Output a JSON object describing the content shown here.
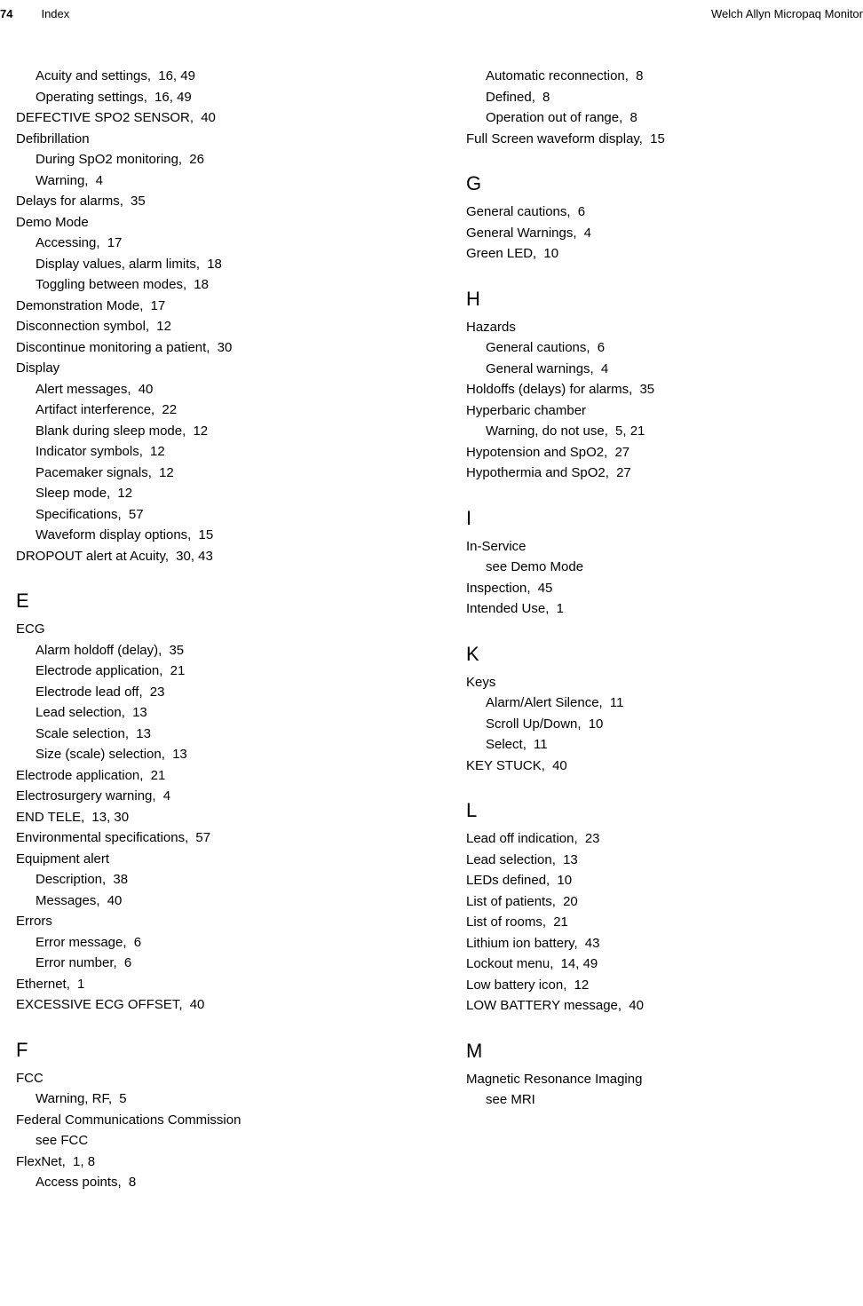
{
  "header": {
    "page_number": "74",
    "section": "Index",
    "product": "Welch Allyn Micropaq Monitor"
  },
  "left": {
    "continuation": [
      {
        "text": "Acuity and settings,",
        "ref": "16, 49",
        "indent": 1
      },
      {
        "text": "Operating settings,",
        "ref": "16, 49",
        "indent": 1
      },
      {
        "text": "DEFECTIVE SPO2 SENSOR,",
        "ref": "40",
        "indent": 0
      },
      {
        "text": "Defibrillation",
        "ref": "",
        "indent": 0
      },
      {
        "text": "During SpO2 monitoring,",
        "ref": "26",
        "indent": 1
      },
      {
        "text": "Warning,",
        "ref": "4",
        "indent": 1
      },
      {
        "text": "Delays for alarms,",
        "ref": "35",
        "indent": 0
      },
      {
        "text": "Demo Mode",
        "ref": "",
        "indent": 0
      },
      {
        "text": "Accessing,",
        "ref": "17",
        "indent": 1
      },
      {
        "text": "Display values, alarm limits,",
        "ref": "18",
        "indent": 1
      },
      {
        "text": "Toggling between modes,",
        "ref": "18",
        "indent": 1
      },
      {
        "text": "Demonstration Mode,",
        "ref": "17",
        "indent": 0
      },
      {
        "text": "Disconnection symbol,",
        "ref": "12",
        "indent": 0
      },
      {
        "text": "Discontinue monitoring a patient,",
        "ref": "30",
        "indent": 0
      },
      {
        "text": "Display",
        "ref": "",
        "indent": 0
      },
      {
        "text": "Alert messages,",
        "ref": "40",
        "indent": 1
      },
      {
        "text": "Artifact interference,",
        "ref": "22",
        "indent": 1
      },
      {
        "text": "Blank during sleep mode,",
        "ref": "12",
        "indent": 1
      },
      {
        "text": "Indicator symbols,",
        "ref": "12",
        "indent": 1
      },
      {
        "text": "Pacemaker signals,",
        "ref": "12",
        "indent": 1
      },
      {
        "text": "Sleep mode,",
        "ref": "12",
        "indent": 1
      },
      {
        "text": "Specifications,",
        "ref": "57",
        "indent": 1
      },
      {
        "text": "Waveform display options,",
        "ref": "15",
        "indent": 1
      },
      {
        "text": "DROPOUT alert at Acuity,",
        "ref": "30, 43",
        "indent": 0
      }
    ],
    "sections": [
      {
        "heading": "E",
        "entries": [
          {
            "text": "ECG",
            "ref": "",
            "indent": 0
          },
          {
            "text": "Alarm holdoff (delay),",
            "ref": "35",
            "indent": 1
          },
          {
            "text": "Electrode application,",
            "ref": "21",
            "indent": 1
          },
          {
            "text": "Electrode lead off,",
            "ref": "23",
            "indent": 1
          },
          {
            "text": "Lead selection,",
            "ref": "13",
            "indent": 1
          },
          {
            "text": "Scale selection,",
            "ref": "13",
            "indent": 1
          },
          {
            "text": "Size (scale) selection,",
            "ref": "13",
            "indent": 1
          },
          {
            "text": "Electrode application,",
            "ref": "21",
            "indent": 0
          },
          {
            "text": "Electrosurgery warning,",
            "ref": "4",
            "indent": 0
          },
          {
            "text": "END TELE,",
            "ref": "13, 30",
            "indent": 0
          },
          {
            "text": "Environmental specifications,",
            "ref": "57",
            "indent": 0
          },
          {
            "text": "Equipment alert",
            "ref": "",
            "indent": 0
          },
          {
            "text": "Description,",
            "ref": "38",
            "indent": 1
          },
          {
            "text": "Messages,",
            "ref": "40",
            "indent": 1
          },
          {
            "text": "Errors",
            "ref": "",
            "indent": 0
          },
          {
            "text": "Error message,",
            "ref": "6",
            "indent": 1
          },
          {
            "text": "Error number,",
            "ref": "6",
            "indent": 1
          },
          {
            "text": "Ethernet,",
            "ref": "1",
            "indent": 0
          },
          {
            "text": "EXCESSIVE ECG OFFSET,",
            "ref": "40",
            "indent": 0
          }
        ]
      },
      {
        "heading": "F",
        "entries": [
          {
            "text": "FCC",
            "ref": "",
            "indent": 0
          },
          {
            "text": "Warning, RF,",
            "ref": "5",
            "indent": 1
          },
          {
            "text": "Federal Communications Commission",
            "ref": "",
            "indent": 0
          },
          {
            "text": "see FCC",
            "ref": "",
            "indent": 1
          },
          {
            "text": "FlexNet,",
            "ref": "1, 8",
            "indent": 0
          },
          {
            "text": "Access points,",
            "ref": "8",
            "indent": 1
          }
        ]
      }
    ]
  },
  "right": {
    "continuation": [
      {
        "text": "Automatic reconnection,",
        "ref": "8",
        "indent": 1
      },
      {
        "text": "Defined,",
        "ref": "8",
        "indent": 1
      },
      {
        "text": "Operation out of range,",
        "ref": "8",
        "indent": 1
      },
      {
        "text": "Full Screen waveform display,",
        "ref": "15",
        "indent": 0
      }
    ],
    "sections": [
      {
        "heading": "G",
        "entries": [
          {
            "text": "General cautions,",
            "ref": "6",
            "indent": 0
          },
          {
            "text": "General Warnings,",
            "ref": "4",
            "indent": 0
          },
          {
            "text": "Green LED,",
            "ref": "10",
            "indent": 0
          }
        ]
      },
      {
        "heading": "H",
        "entries": [
          {
            "text": "Hazards",
            "ref": "",
            "indent": 0
          },
          {
            "text": "General cautions,",
            "ref": "6",
            "indent": 1
          },
          {
            "text": "General warnings,",
            "ref": "4",
            "indent": 1
          },
          {
            "text": "Holdoffs (delays) for alarms,",
            "ref": "35",
            "indent": 0
          },
          {
            "text": "Hyperbaric chamber",
            "ref": "",
            "indent": 0
          },
          {
            "text": "Warning, do not use,",
            "ref": "5, 21",
            "indent": 1
          },
          {
            "text": "Hypotension and SpO2,",
            "ref": "27",
            "indent": 0
          },
          {
            "text": "Hypothermia and SpO2,",
            "ref": "27",
            "indent": 0
          }
        ]
      },
      {
        "heading": "I",
        "entries": [
          {
            "text": "In-Service",
            "ref": "",
            "indent": 0
          },
          {
            "text": "see Demo Mode",
            "ref": "",
            "indent": 1
          },
          {
            "text": "Inspection,",
            "ref": "45",
            "indent": 0
          },
          {
            "text": "Intended Use,",
            "ref": "1",
            "indent": 0
          }
        ]
      },
      {
        "heading": "K",
        "entries": [
          {
            "text": "Keys",
            "ref": "",
            "indent": 0
          },
          {
            "text": "Alarm/Alert Silence,",
            "ref": "11",
            "indent": 1
          },
          {
            "text": "Scroll Up/Down,",
            "ref": "10",
            "indent": 1
          },
          {
            "text": "Select,",
            "ref": "11",
            "indent": 1
          },
          {
            "text": "KEY STUCK,",
            "ref": "40",
            "indent": 0
          }
        ]
      },
      {
        "heading": "L",
        "entries": [
          {
            "text": "Lead off indication,",
            "ref": "23",
            "indent": 0
          },
          {
            "text": "Lead selection,",
            "ref": "13",
            "indent": 0
          },
          {
            "text": "LEDs defined,",
            "ref": "10",
            "indent": 0
          },
          {
            "text": "List of patients,",
            "ref": "20",
            "indent": 0
          },
          {
            "text": "List of rooms,",
            "ref": "21",
            "indent": 0
          },
          {
            "text": "Lithium ion battery,",
            "ref": "43",
            "indent": 0
          },
          {
            "text": "Lockout menu,",
            "ref": "14, 49",
            "indent": 0
          },
          {
            "text": "Low battery icon,",
            "ref": "12",
            "indent": 0
          },
          {
            "text": "LOW BATTERY message,",
            "ref": "40",
            "indent": 0
          }
        ]
      },
      {
        "heading": "M",
        "entries": [
          {
            "text": "Magnetic Resonance Imaging",
            "ref": "",
            "indent": 0
          },
          {
            "text": "see MRI",
            "ref": "",
            "indent": 1
          }
        ]
      }
    ]
  }
}
